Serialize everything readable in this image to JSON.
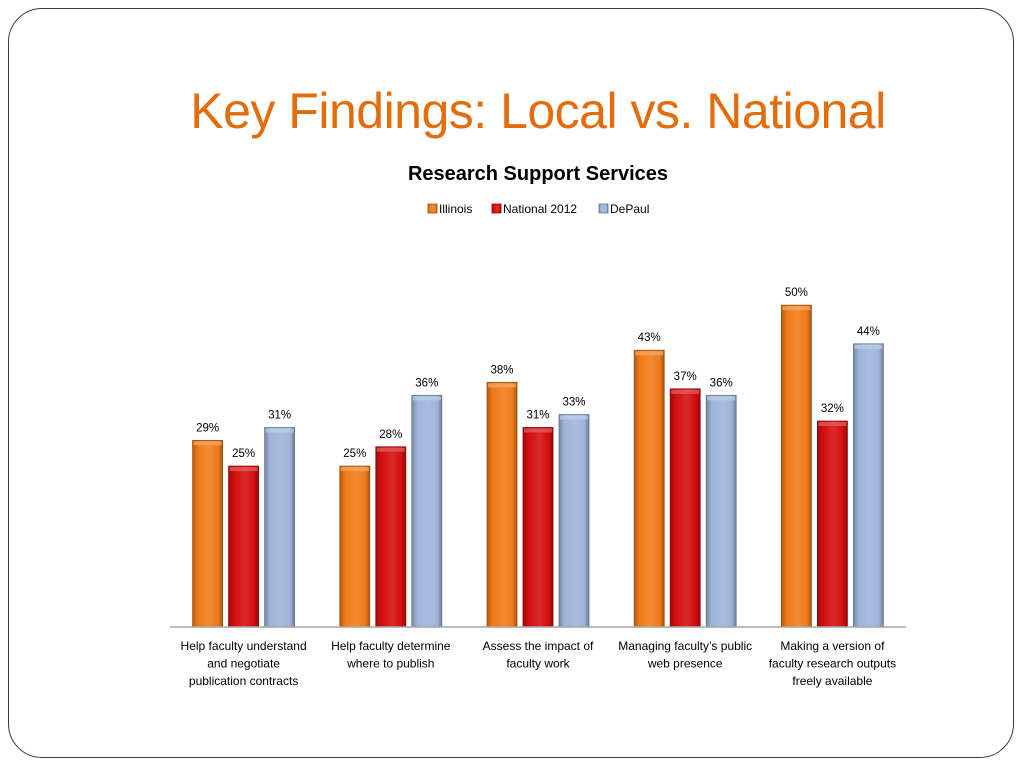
{
  "slide": {
    "title": "Key Findings: Local vs. National"
  },
  "colors": {
    "title": "#E46C0A",
    "Illinois": "#F07A18",
    "National 2012": "#D40D0D",
    "DePaul": "#9DB4DA"
  },
  "chart_data": {
    "type": "bar",
    "title": "Research Support Services",
    "legend_position": "top",
    "grid": false,
    "ylim": [
      0,
      55
    ],
    "categories": [
      [
        "Help faculty understand",
        "and negotiate",
        "publication contracts"
      ],
      [
        "Help faculty determine",
        "where to publish"
      ],
      [
        "Assess the impact of",
        "faculty work"
      ],
      [
        "Managing faculty’s public",
        "web presence"
      ],
      [
        "Making a version of",
        "faculty research outputs",
        "freely available"
      ]
    ],
    "series": [
      {
        "name": "Illinois",
        "values": [
          29,
          25,
          38,
          43,
          50
        ],
        "labels": [
          "29%",
          "25%",
          "38%",
          "43%",
          "50%"
        ]
      },
      {
        "name": "National 2012",
        "values": [
          25,
          28,
          31,
          37,
          32
        ],
        "labels": [
          "25%",
          "28%",
          "31%",
          "37%",
          "32%"
        ]
      },
      {
        "name": "DePaul",
        "values": [
          31,
          36,
          33,
          36,
          44
        ],
        "labels": [
          "31%",
          "36%",
          "33%",
          "36%",
          "44%"
        ]
      }
    ]
  }
}
